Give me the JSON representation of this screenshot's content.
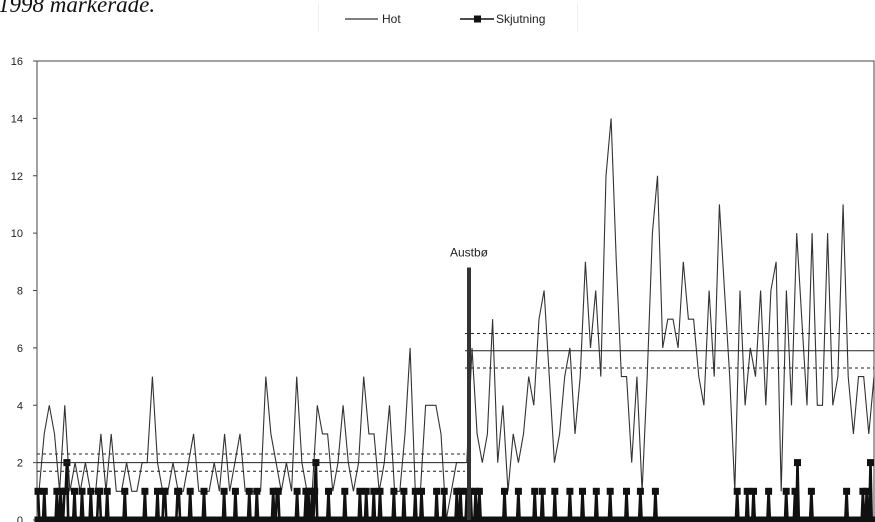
{
  "caption": "1998 markerade.",
  "chart_data": {
    "type": "line",
    "title": "",
    "xlabel": "",
    "ylabel": "",
    "ylim": [
      0,
      16
    ],
    "yticks": [
      0,
      2,
      4,
      6,
      8,
      10,
      12,
      14,
      16
    ],
    "grid": false,
    "legend_placement": "top-center",
    "series": [
      {
        "name": "Hot",
        "style": "line",
        "color": "#333333",
        "values": [
          1,
          3,
          4,
          3,
          1,
          4,
          1,
          2,
          1,
          2,
          1,
          1,
          3,
          1,
          3,
          1,
          1,
          2,
          1,
          1,
          2,
          2,
          5,
          2,
          1,
          1,
          2,
          1,
          1,
          2,
          3,
          1,
          1,
          1,
          2,
          1,
          3,
          1,
          2,
          3,
          1,
          1,
          1,
          1,
          5,
          3,
          2,
          1,
          2,
          1,
          5,
          2,
          1,
          1,
          4,
          3,
          3,
          1,
          2,
          4,
          2,
          1,
          2,
          5,
          3,
          3,
          1,
          2,
          4,
          1,
          1,
          3,
          6,
          1,
          1,
          4,
          4,
          4,
          3,
          0,
          1,
          2,
          2,
          2,
          6,
          3,
          2,
          3,
          7,
          2,
          4,
          1,
          3,
          2,
          3,
          5,
          4,
          7,
          8,
          5,
          2,
          3,
          5,
          6,
          3,
          5,
          9,
          6,
          8,
          5,
          12,
          14,
          9,
          5,
          5,
          2,
          5,
          1,
          5,
          10,
          12,
          6,
          7,
          7,
          6,
          9,
          7,
          7,
          5,
          4,
          8,
          5,
          11,
          8,
          5,
          1,
          8,
          4,
          6,
          5,
          8,
          4,
          8,
          9,
          1,
          8,
          4,
          10,
          7,
          4,
          10,
          4,
          4,
          10,
          4,
          5,
          11,
          5,
          3,
          5,
          5,
          3,
          5
        ]
      },
      {
        "name": "Skjutning",
        "style": "line-with-square-markers",
        "color": "#111111",
        "values": [
          1,
          0,
          0,
          0,
          0,
          1,
          0,
          0,
          0,
          0,
          0,
          0,
          0,
          0,
          0,
          1,
          0,
          0,
          1,
          0,
          0,
          1,
          1,
          2,
          0,
          0,
          0,
          0,
          0,
          1,
          0,
          0,
          0,
          0,
          0,
          1,
          0,
          0,
          0,
          0,
          0,
          0,
          1,
          0,
          0,
          0,
          0,
          0,
          1,
          1,
          0,
          0,
          0,
          0,
          0,
          1,
          0,
          0,
          0,
          0,
          0,
          0,
          0,
          0,
          0,
          0,
          0,
          0,
          0,
          1,
          0,
          0,
          0,
          0,
          0,
          0,
          0,
          0,
          0,
          0,
          0,
          0,
          0,
          0,
          0,
          1,
          0,
          0,
          0,
          0,
          0,
          0,
          0,
          0,
          0,
          1,
          0,
          0,
          0,
          0,
          1,
          1,
          0,
          0,
          0,
          0,
          0,
          0,
          0,
          0,
          0,
          1,
          1,
          0,
          0,
          0,
          0,
          0,
          0,
          0,
          0,
          1,
          0,
          0,
          0,
          0,
          0,
          0,
          0,
          0,
          0,
          0,
          1,
          0,
          0,
          0,
          0,
          0,
          0,
          0,
          0,
          0,
          0,
          0,
          0,
          0,
          0,
          0,
          1,
          0,
          0,
          0,
          0,
          0,
          0,
          0,
          0,
          1,
          0,
          0,
          0,
          0,
          0,
          0,
          0,
          0,
          0,
          0,
          1,
          0,
          0,
          0,
          0,
          0,
          1,
          0,
          0,
          0,
          0,
          0,
          0,
          0,
          0,
          0,
          0,
          0,
          0,
          1,
          0,
          0,
          1,
          1,
          0,
          0,
          0,
          0,
          0,
          0,
          0,
          0,
          0,
          0,
          0,
          0,
          0,
          0,
          1,
          0,
          0,
          0,
          0,
          0,
          0,
          1,
          0,
          1,
          0,
          0,
          1,
          0,
          1,
          2,
          0,
          0,
          0,
          0,
          0,
          0,
          0,
          0,
          0,
          1,
          0,
          0,
          0,
          0,
          0,
          0,
          0,
          0,
          0,
          0,
          0,
          0,
          1,
          0,
          0,
          0,
          0,
          0,
          0,
          0,
          0,
          0,
          0,
          0,
          1,
          0,
          0,
          0,
          0,
          1,
          0,
          0,
          0,
          0,
          0,
          1,
          0,
          0,
          0,
          0,
          1,
          0,
          0,
          0,
          0,
          0,
          0,
          0,
          0,
          0,
          0,
          1,
          0,
          0,
          0,
          0,
          0,
          0,
          0,
          1,
          0,
          0,
          0,
          0,
          0,
          0,
          0,
          0,
          1,
          0,
          0,
          0,
          0,
          1,
          0,
          0,
          0,
          0,
          0,
          0,
          0,
          0,
          0,
          0,
          0,
          1,
          0,
          0,
          0,
          0,
          0,
          1,
          0,
          0,
          0,
          0,
          0,
          0,
          0,
          0,
          0,
          1,
          0,
          0,
          1,
          0,
          0,
          0,
          0,
          1,
          0,
          0,
          1,
          0,
          0,
          0,
          1,
          0,
          0,
          1,
          0,
          0,
          0,
          0,
          0,
          0,
          0,
          0,
          0,
          0,
          0,
          0,
          0,
          0,
          0,
          0,
          0,
          0,
          0,
          1,
          0,
          0,
          0,
          0,
          0,
          0,
          0,
          0,
          0,
          0,
          1,
          0,
          0,
          0,
          0,
          0,
          0,
          0,
          0,
          0,
          0,
          0,
          0,
          1,
          0,
          0,
          0,
          0,
          0,
          1,
          0,
          0,
          0,
          0,
          0,
          0,
          0,
          0,
          0,
          1,
          0,
          0,
          0,
          0,
          0,
          0,
          0,
          0,
          0,
          0,
          0,
          1,
          0,
          0,
          0,
          0,
          0,
          0,
          0,
          0,
          0,
          1,
          0,
          0,
          0,
          0,
          0,
          0,
          0,
          0,
          0,
          0,
          1,
          0,
          0,
          0,
          0,
          0,
          0,
          0,
          0,
          0,
          0,
          1,
          0,
          0,
          0,
          0,
          0,
          0,
          0,
          0,
          0,
          0,
          0,
          0,
          1,
          0,
          0,
          0,
          0,
          0,
          0,
          0,
          0,
          0,
          0,
          1,
          0,
          0,
          0,
          0,
          0,
          0,
          0,
          0,
          0,
          0,
          0,
          1,
          0,
          0,
          0,
          0,
          0,
          0,
          0,
          0,
          0,
          0,
          0,
          0,
          0,
          0,
          0,
          0,
          0,
          0,
          0,
          0,
          0,
          0,
          0,
          0,
          0,
          0,
          0,
          0,
          0,
          0,
          0,
          0,
          0,
          0,
          0,
          0,
          0,
          0,
          0,
          0,
          0,
          0,
          0,
          0,
          0,
          0,
          0,
          0,
          0,
          0,
          0,
          0,
          0,
          0,
          0,
          0,
          0,
          0,
          0,
          0,
          0,
          0,
          0,
          0,
          1,
          0,
          0,
          0,
          0,
          0,
          0,
          0,
          1,
          0,
          0,
          0,
          0,
          1,
          0,
          0,
          0,
          0,
          0,
          0,
          0,
          0,
          0,
          0,
          0,
          1,
          0,
          0,
          0,
          0,
          0,
          0,
          0,
          0,
          0,
          0,
          0,
          0,
          0,
          1,
          0,
          0,
          0,
          0,
          0,
          0,
          1,
          0,
          2,
          0,
          0,
          0,
          0,
          0,
          0,
          0,
          0,
          0,
          0,
          1,
          0,
          0,
          0,
          0,
          0,
          0,
          0,
          0,
          0,
          0,
          0,
          0,
          0,
          0,
          0,
          0,
          0,
          0,
          0,
          0,
          0,
          0,
          0,
          0,
          0,
          0,
          0,
          1,
          0,
          0,
          0,
          0,
          0,
          0,
          0,
          0,
          0,
          0,
          0,
          0,
          1,
          0,
          0,
          1,
          0,
          0,
          2,
          0,
          0
        ]
      }
    ],
    "reference_lines": [
      {
        "segment": "before",
        "mean": 2.0,
        "lower": 1.7,
        "upper": 2.3
      },
      {
        "segment": "after",
        "mean": 5.9,
        "lower": 5.3,
        "upper": 6.5
      }
    ],
    "annotation": {
      "label": "Austbø",
      "value": 8.8
    }
  }
}
